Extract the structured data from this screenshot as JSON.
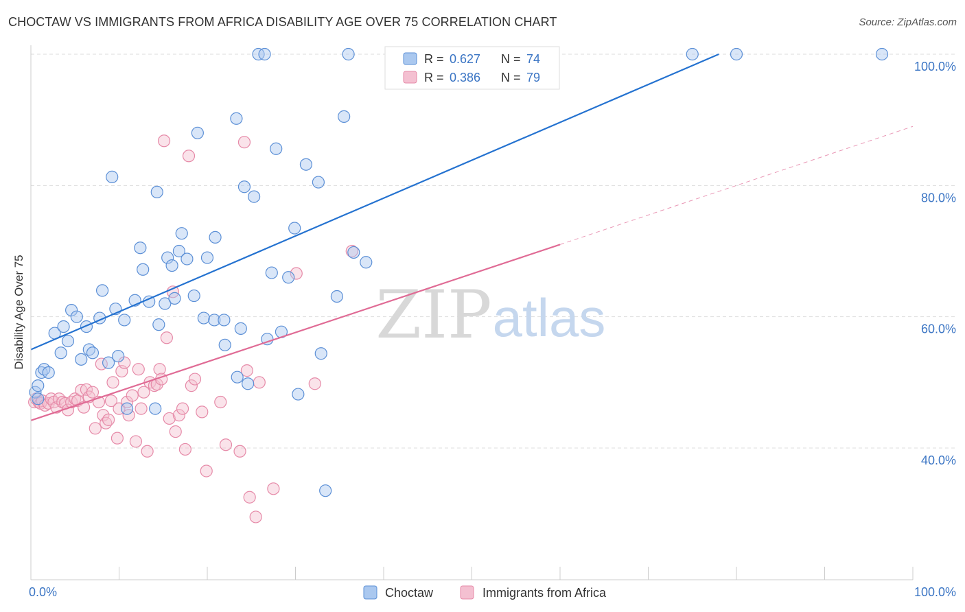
{
  "header": {
    "title": "CHOCTAW VS IMMIGRANTS FROM AFRICA DISABILITY AGE OVER 75 CORRELATION CHART",
    "source": "Source: ZipAtlas.com"
  },
  "watermark": {
    "zip": "ZIP",
    "atlas": "atlas"
  },
  "colors": {
    "choctaw": "#5b8fd6",
    "choctaw_fill": "#aac8ef",
    "choctaw_line": "#2472d0",
    "africa": "#e68aa8",
    "africa_fill": "#f4c0d1",
    "africa_line": "#e06b95",
    "tick_text": "#3b75c4",
    "grid": "#dddddd"
  },
  "legend_top": [
    {
      "r_label": "R =",
      "r_value": "0.627",
      "n_label": "N =",
      "n_value": "74"
    },
    {
      "r_label": "R =",
      "r_value": "0.386",
      "n_label": "N =",
      "n_value": "79"
    }
  ],
  "legend_bottom": [
    "Choctaw",
    "Immigrants from Africa"
  ],
  "chart_data": {
    "type": "scatter",
    "title": "CHOCTAW VS IMMIGRANTS FROM AFRICA DISABILITY AGE OVER 75 CORRELATION CHART",
    "xlabel": "",
    "ylabel": "Disability Age Over 75",
    "xlim": [
      0,
      100
    ],
    "ylim": [
      18,
      102
    ],
    "x_tick_labels": [
      "0.0%",
      "100.0%"
    ],
    "y_ticks": [
      40,
      60,
      80,
      100
    ],
    "y_tick_labels": [
      "40.0%",
      "60.0%",
      "80.0%",
      "100.0%"
    ],
    "grid": true,
    "legend_position": "top-center",
    "series": [
      {
        "name": "Choctaw",
        "r": 0.627,
        "n": 74,
        "trend": {
          "x0": 0,
          "y0": 55.0,
          "x1": 78,
          "y1": 100.0,
          "dashed_to": null
        },
        "points": [
          [
            0.5,
            48.5
          ],
          [
            0.8,
            47.5
          ],
          [
            0.8,
            49.5
          ],
          [
            1.2,
            51.5
          ],
          [
            1.5,
            52
          ],
          [
            2,
            51.5
          ],
          [
            2.7,
            57.5
          ],
          [
            3.4,
            54.5
          ],
          [
            3.7,
            58.5
          ],
          [
            4.2,
            56.3
          ],
          [
            4.6,
            61
          ],
          [
            5.2,
            60
          ],
          [
            5.7,
            53.5
          ],
          [
            6.3,
            58.5
          ],
          [
            6.6,
            55
          ],
          [
            7,
            54.5
          ],
          [
            7.8,
            59.8
          ],
          [
            8.1,
            64
          ],
          [
            8.8,
            53
          ],
          [
            9.2,
            81.3
          ],
          [
            9.6,
            61.2
          ],
          [
            9.9,
            54
          ],
          [
            10.6,
            59.5
          ],
          [
            10.9,
            46
          ],
          [
            11.8,
            62.5
          ],
          [
            12.4,
            70.5
          ],
          [
            12.7,
            67.2
          ],
          [
            13.4,
            62.3
          ],
          [
            14.1,
            46
          ],
          [
            14.3,
            79
          ],
          [
            14.5,
            58.8
          ],
          [
            15.2,
            62
          ],
          [
            15.5,
            69
          ],
          [
            16,
            67.8
          ],
          [
            16.3,
            62.8
          ],
          [
            16.8,
            70
          ],
          [
            17.1,
            72.7
          ],
          [
            17.7,
            68.8
          ],
          [
            18.5,
            63.2
          ],
          [
            18.9,
            88
          ],
          [
            19.6,
            59.8
          ],
          [
            20,
            69
          ],
          [
            20.8,
            59.5
          ],
          [
            20.9,
            72.1
          ],
          [
            21.9,
            59.5
          ],
          [
            22,
            55.7
          ],
          [
            23.3,
            90.2
          ],
          [
            23.4,
            50.8
          ],
          [
            23.8,
            58.2
          ],
          [
            24.2,
            79.8
          ],
          [
            24.6,
            49.8
          ],
          [
            25.3,
            78.3
          ],
          [
            25.8,
            100
          ],
          [
            26.5,
            100
          ],
          [
            26.8,
            56.6
          ],
          [
            27.3,
            66.7
          ],
          [
            27.8,
            85.6
          ],
          [
            28.4,
            57.7
          ],
          [
            29.2,
            66
          ],
          [
            29.9,
            73.5
          ],
          [
            30.3,
            48.2
          ],
          [
            31.2,
            83.2
          ],
          [
            32.6,
            80.5
          ],
          [
            32.9,
            54.4
          ],
          [
            33.4,
            33.5
          ],
          [
            34.7,
            63.1
          ],
          [
            35.5,
            90.5
          ],
          [
            36,
            100
          ],
          [
            36.6,
            69.8
          ],
          [
            38,
            68.3
          ],
          [
            75,
            100
          ],
          [
            80,
            100
          ],
          [
            96.5,
            100
          ]
        ]
      },
      {
        "name": "Immigrants from Africa",
        "r": 0.386,
        "n": 79,
        "trend": {
          "x0": 0,
          "y0": 44.2,
          "x1": 60,
          "y1": 71.0,
          "dashed_to": [
            100,
            89.0
          ]
        },
        "points": [
          [
            0.4,
            47
          ],
          [
            0.6,
            47.5
          ],
          [
            0.9,
            47
          ],
          [
            1.1,
            46.8
          ],
          [
            1.3,
            47.2
          ],
          [
            1.6,
            46.5
          ],
          [
            2,
            46.8
          ],
          [
            2.3,
            47.5
          ],
          [
            2.6,
            47
          ],
          [
            2.9,
            46.2
          ],
          [
            3.2,
            47.5
          ],
          [
            3.6,
            47
          ],
          [
            3.9,
            46.8
          ],
          [
            4.2,
            45.8
          ],
          [
            4.6,
            47
          ],
          [
            5,
            47.5
          ],
          [
            5.3,
            47.2
          ],
          [
            5.7,
            48.8
          ],
          [
            6,
            46.2
          ],
          [
            6.3,
            48.9
          ],
          [
            6.6,
            47.8
          ],
          [
            7,
            48.5
          ],
          [
            7.3,
            43
          ],
          [
            7.7,
            47
          ],
          [
            8,
            52.8
          ],
          [
            8.2,
            45
          ],
          [
            8.5,
            43.8
          ],
          [
            8.8,
            44.3
          ],
          [
            9.1,
            47.2
          ],
          [
            9.3,
            50
          ],
          [
            9.8,
            41.5
          ],
          [
            10,
            46
          ],
          [
            10.3,
            51.7
          ],
          [
            10.6,
            53
          ],
          [
            10.9,
            47
          ],
          [
            11.1,
            45
          ],
          [
            11.5,
            48
          ],
          [
            11.9,
            41
          ],
          [
            12.2,
            52
          ],
          [
            12.5,
            46
          ],
          [
            12.8,
            48.5
          ],
          [
            13.2,
            39.5
          ],
          [
            13.5,
            50
          ],
          [
            14,
            49.5
          ],
          [
            14.3,
            49.7
          ],
          [
            14.6,
            52
          ],
          [
            14.8,
            50.5
          ],
          [
            15.1,
            86.8
          ],
          [
            15.4,
            56.8
          ],
          [
            15.7,
            44.5
          ],
          [
            16.1,
            63.8
          ],
          [
            16.4,
            42.5
          ],
          [
            16.8,
            45
          ],
          [
            17.2,
            46
          ],
          [
            17.5,
            39.8
          ],
          [
            17.9,
            84.5
          ],
          [
            18.2,
            49.5
          ],
          [
            18.6,
            50.5
          ],
          [
            19.4,
            45.5
          ],
          [
            19.9,
            36.5
          ],
          [
            21.5,
            47
          ],
          [
            22.1,
            40.5
          ],
          [
            23.7,
            39.5
          ],
          [
            24.2,
            86.6
          ],
          [
            24.5,
            51.8
          ],
          [
            24.8,
            32.5
          ],
          [
            25.5,
            29.5
          ],
          [
            25.9,
            50
          ],
          [
            27.5,
            33.8
          ],
          [
            30.1,
            66.6
          ],
          [
            32.2,
            49.8
          ],
          [
            36.4,
            70
          ]
        ]
      }
    ]
  }
}
